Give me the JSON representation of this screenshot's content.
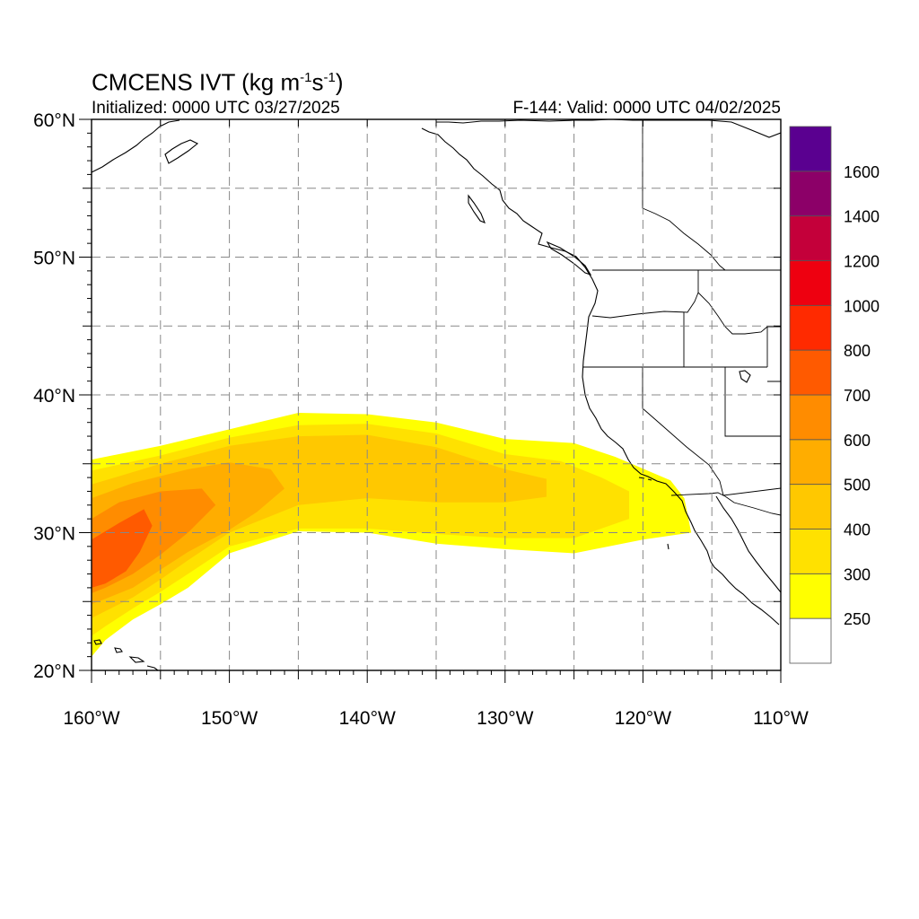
{
  "header": {
    "model": "CMCENS",
    "variable": "IVT",
    "units": "kg m-1s-1",
    "initialized": "Initialized: 0000 UTC 03/27/2025",
    "valid": "F-144: Valid: 0000 UTC 04/02/2025"
  },
  "axes": {
    "lon_labels": [
      "160°W",
      "150°W",
      "140°W",
      "130°W",
      "120°W",
      "110°W"
    ],
    "lat_labels": [
      "20°N",
      "30°N",
      "40°N",
      "50°N",
      "60°N"
    ],
    "lon_range": [
      -160,
      -110
    ],
    "lat_range": [
      20,
      60
    ],
    "grid_lon_step": 5,
    "grid_lat_step": 5,
    "grid": "dashed gray"
  },
  "colorbar": {
    "labels": [
      "250",
      "300",
      "400",
      "500",
      "600",
      "700",
      "800",
      "1000",
      "1200",
      "1400",
      "1600"
    ],
    "colors": [
      "#ffffff",
      "#ffff00",
      "#ffe100",
      "#ffc800",
      "#ffad00",
      "#ff8c00",
      "#ff5a00",
      "#ff2a00",
      "#ee0010",
      "#c4003a",
      "#8c0068",
      "#5a0090"
    ]
  },
  "chart_data": {
    "type": "heatmap",
    "title": "CMCENS IVT (kg m-1s-1)",
    "levels": [
      250,
      300,
      400,
      500,
      600,
      700,
      800,
      1000,
      1200,
      1400,
      1600
    ],
    "units": "kg m-1s-1",
    "regions": [
      {
        "level": 250,
        "polygon_lonlat": [
          [
            -160,
            35.3
          ],
          [
            -155,
            36.3
          ],
          [
            -150,
            37.5
          ],
          [
            -145,
            38.7
          ],
          [
            -140,
            38.6
          ],
          [
            -135,
            38.0
          ],
          [
            -130,
            36.8
          ],
          [
            -125,
            36.5
          ],
          [
            -122,
            35.5
          ],
          [
            -118,
            33.8
          ],
          [
            -117,
            32.5
          ],
          [
            -116.5,
            30.0
          ],
          [
            -120,
            29.5
          ],
          [
            -125,
            28.5
          ],
          [
            -130,
            28.8
          ],
          [
            -135,
            29.2
          ],
          [
            -140,
            30.0
          ],
          [
            -145,
            30.1
          ],
          [
            -150,
            28.5
          ],
          [
            -153,
            26.0
          ],
          [
            -155,
            24.8
          ],
          [
            -157,
            23.7
          ],
          [
            -159,
            22.2
          ],
          [
            -160,
            21.0
          ]
        ]
      },
      {
        "level": 300,
        "polygon_lonlat": [
          [
            -160,
            34.5
          ],
          [
            -155,
            35.6
          ],
          [
            -150,
            36.9
          ],
          [
            -145,
            37.8
          ],
          [
            -140,
            37.9
          ],
          [
            -135,
            37.2
          ],
          [
            -130,
            35.7
          ],
          [
            -126,
            35.2
          ],
          [
            -123,
            34.0
          ],
          [
            -121,
            33.0
          ],
          [
            -121,
            31.0
          ],
          [
            -125,
            29.6
          ],
          [
            -130,
            29.6
          ],
          [
            -135,
            29.9
          ],
          [
            -140,
            30.3
          ],
          [
            -145,
            30.3
          ],
          [
            -150,
            29.0
          ],
          [
            -153,
            27.0
          ],
          [
            -155,
            25.7
          ],
          [
            -157,
            24.5
          ],
          [
            -159,
            23.2
          ],
          [
            -160,
            22.5
          ]
        ]
      },
      {
        "level": 400,
        "polygon_lonlat": [
          [
            -160,
            33.5
          ],
          [
            -155,
            35.0
          ],
          [
            -150,
            36.3
          ],
          [
            -145,
            37.0
          ],
          [
            -140,
            37.1
          ],
          [
            -135,
            36.2
          ],
          [
            -130,
            34.6
          ],
          [
            -127,
            33.9
          ],
          [
            -127,
            32.6
          ],
          [
            -130,
            32.2
          ],
          [
            -135,
            32.2
          ],
          [
            -140,
            32.5
          ],
          [
            -145,
            32.0
          ],
          [
            -150,
            30.0
          ],
          [
            -153,
            28.0
          ],
          [
            -155,
            26.6
          ],
          [
            -157,
            25.3
          ],
          [
            -159,
            24.3
          ],
          [
            -160,
            23.8
          ]
        ]
      },
      {
        "level": 500,
        "polygon_lonlat": [
          [
            -160,
            32.5
          ],
          [
            -157,
            33.6
          ],
          [
            -153,
            34.6
          ],
          [
            -150,
            35.1
          ],
          [
            -147,
            34.6
          ],
          [
            -146,
            33.2
          ],
          [
            -148,
            31.5
          ],
          [
            -150,
            30.2
          ],
          [
            -153,
            28.6
          ],
          [
            -155,
            27.3
          ],
          [
            -157,
            26.0
          ],
          [
            -159,
            25.2
          ],
          [
            -160,
            24.8
          ]
        ]
      },
      {
        "level": 600,
        "polygon_lonlat": [
          [
            -160,
            31.0
          ],
          [
            -158,
            32.2
          ],
          [
            -155,
            33.0
          ],
          [
            -152,
            33.2
          ],
          [
            -151,
            32.0
          ],
          [
            -153,
            30.0
          ],
          [
            -155,
            28.4
          ],
          [
            -157,
            27.0
          ],
          [
            -159,
            26.0
          ],
          [
            -160,
            25.6
          ]
        ]
      },
      {
        "level": 700,
        "polygon_lonlat": [
          [
            -160,
            29.5
          ],
          [
            -158,
            30.7
          ],
          [
            -156.2,
            31.7
          ],
          [
            -155.6,
            30.5
          ],
          [
            -156.5,
            28.6
          ],
          [
            -157.5,
            27.2
          ],
          [
            -159,
            26.3
          ],
          [
            -160,
            26.0
          ]
        ]
      }
    ]
  }
}
